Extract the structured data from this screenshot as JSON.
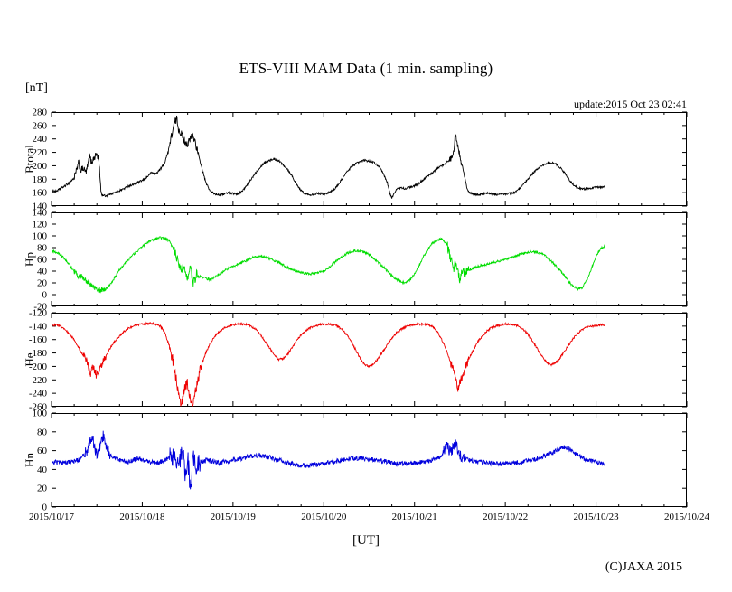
{
  "page": {
    "title": "ETS-VIII MAM Data (1 min. sampling)",
    "unit_label": "[nT]",
    "update_text": "update:2015 Oct 23 02:41",
    "xlabel": "[UT]",
    "copyright": "(C)JAXA 2015",
    "background": "#ffffff"
  },
  "x_axis": {
    "tick_labels": [
      "2015/10/17",
      "2015/10/18",
      "2015/10/19",
      "2015/10/20",
      "2015/10/21",
      "2015/10/22",
      "2015/10/23",
      "2015/10/24"
    ],
    "xlim_days": [
      0,
      7
    ],
    "minor_tick_days": 0.25
  },
  "chart_data": [
    {
      "type": "line",
      "name": "Btotal",
      "color": "#000000",
      "ylim": [
        140,
        280
      ],
      "ytick_step": 20,
      "noise": 1.5,
      "noise_regions": [
        [
          0.25,
          0.55,
          5
        ],
        [
          1.28,
          1.62,
          6
        ],
        [
          4.38,
          4.52,
          5
        ]
      ],
      "x": [
        0,
        0.05,
        0.1,
        0.15,
        0.2,
        0.25,
        0.28,
        0.3,
        0.32,
        0.35,
        0.38,
        0.4,
        0.42,
        0.44,
        0.46,
        0.5,
        0.52,
        0.55,
        0.6,
        0.65,
        0.7,
        0.75,
        0.8,
        0.85,
        0.9,
        0.95,
        1,
        1.05,
        1.1,
        1.15,
        1.2,
        1.25,
        1.3,
        1.35,
        1.38,
        1.4,
        1.43,
        1.45,
        1.5,
        1.55,
        1.58,
        1.62,
        1.65,
        1.7,
        1.75,
        1.8,
        1.85,
        1.9,
        1.95,
        2,
        2.05,
        2.1,
        2.15,
        2.2,
        2.25,
        2.3,
        2.35,
        2.4,
        2.45,
        2.5,
        2.55,
        2.6,
        2.65,
        2.7,
        2.75,
        2.8,
        2.85,
        2.9,
        2.95,
        3,
        3.05,
        3.1,
        3.15,
        3.2,
        3.25,
        3.3,
        3.35,
        3.4,
        3.45,
        3.5,
        3.55,
        3.6,
        3.65,
        3.7,
        3.73,
        3.75,
        3.78,
        3.8,
        3.85,
        3.9,
        3.95,
        4,
        4.05,
        4.1,
        4.15,
        4.2,
        4.25,
        4.3,
        4.35,
        4.4,
        4.43,
        4.45,
        4.47,
        4.5,
        4.55,
        4.58,
        4.6,
        4.65,
        4.7,
        4.75,
        4.8,
        4.85,
        4.9,
        4.95,
        5,
        5.05,
        5.1,
        5.15,
        5.2,
        5.25,
        5.3,
        5.35,
        5.4,
        5.45,
        5.5,
        5.55,
        5.6,
        5.65,
        5.7,
        5.75,
        5.8,
        5.85,
        5.9,
        5.95,
        6,
        6.05,
        6.1
      ],
      "values": [
        163,
        162,
        166,
        170,
        175,
        182,
        195,
        205,
        193,
        196,
        190,
        200,
        215,
        205,
        210,
        218,
        208,
        157,
        155,
        158,
        160,
        163,
        166,
        170,
        172,
        175,
        178,
        183,
        190,
        188,
        195,
        205,
        230,
        262,
        270,
        255,
        248,
        240,
        232,
        245,
        238,
        215,
        200,
        175,
        162,
        158,
        157,
        158,
        160,
        159,
        158,
        162,
        170,
        180,
        190,
        198,
        205,
        208,
        210,
        208,
        202,
        195,
        185,
        172,
        163,
        158,
        157,
        158,
        159,
        158,
        160,
        163,
        170,
        180,
        190,
        198,
        203,
        206,
        208,
        207,
        205,
        200,
        190,
        175,
        158,
        152,
        160,
        165,
        167,
        166,
        168,
        170,
        174,
        180,
        185,
        190,
        196,
        200,
        205,
        210,
        220,
        250,
        235,
        215,
        185,
        165,
        160,
        158,
        157,
        158,
        159,
        158,
        157,
        158,
        158,
        159,
        160,
        165,
        172,
        180,
        188,
        195,
        200,
        203,
        205,
        203,
        198,
        190,
        180,
        172,
        167,
        165,
        166,
        167,
        168,
        168,
        170
      ]
    },
    {
      "type": "line",
      "name": "Hp",
      "color": "#00dd00",
      "ylim": [
        -20,
        140
      ],
      "ytick_step": 20,
      "noise": 2,
      "noise_regions": [
        [
          0.25,
          0.6,
          5
        ],
        [
          1.35,
          1.65,
          8
        ],
        [
          4.36,
          4.6,
          8
        ]
      ],
      "x": [
        0,
        0.05,
        0.1,
        0.15,
        0.2,
        0.25,
        0.28,
        0.3,
        0.33,
        0.36,
        0.4,
        0.45,
        0.5,
        0.55,
        0.6,
        0.65,
        0.7,
        0.75,
        0.8,
        0.85,
        0.9,
        0.95,
        1,
        1.05,
        1.1,
        1.15,
        1.2,
        1.25,
        1.3,
        1.35,
        1.4,
        1.43,
        1.46,
        1.5,
        1.53,
        1.56,
        1.6,
        1.65,
        1.7,
        1.75,
        1.8,
        1.85,
        1.9,
        1.95,
        2,
        2.05,
        2.1,
        2.15,
        2.2,
        2.25,
        2.3,
        2.35,
        2.4,
        2.45,
        2.5,
        2.55,
        2.6,
        2.65,
        2.7,
        2.75,
        2.8,
        2.85,
        2.9,
        2.95,
        3,
        3.05,
        3.1,
        3.15,
        3.2,
        3.25,
        3.3,
        3.35,
        3.4,
        3.45,
        3.5,
        3.55,
        3.6,
        3.65,
        3.7,
        3.75,
        3.8,
        3.85,
        3.9,
        3.95,
        4,
        4.05,
        4.1,
        4.15,
        4.2,
        4.25,
        4.3,
        4.33,
        4.36,
        4.4,
        4.43,
        4.46,
        4.5,
        4.53,
        4.56,
        4.6,
        4.65,
        4.7,
        4.75,
        4.8,
        4.85,
        4.9,
        4.95,
        5,
        5.05,
        5.1,
        5.15,
        5.2,
        5.25,
        5.3,
        5.35,
        5.4,
        5.45,
        5.5,
        5.55,
        5.6,
        5.65,
        5.7,
        5.75,
        5.8,
        5.85,
        5.9,
        5.95,
        6,
        6.05,
        6.1
      ],
      "values": [
        75,
        72,
        68,
        60,
        50,
        40,
        35,
        28,
        32,
        25,
        22,
        15,
        8,
        8,
        10,
        18,
        30,
        42,
        52,
        60,
        68,
        75,
        82,
        88,
        92,
        95,
        97,
        95,
        92,
        75,
        55,
        40,
        50,
        30,
        45,
        20,
        35,
        30,
        28,
        25,
        30,
        35,
        40,
        45,
        48,
        52,
        55,
        58,
        62,
        64,
        65,
        64,
        62,
        58,
        55,
        50,
        46,
        42,
        40,
        38,
        36,
        35,
        36,
        38,
        40,
        45,
        52,
        58,
        64,
        70,
        73,
        75,
        74,
        72,
        68,
        62,
        55,
        48,
        40,
        32,
        26,
        22,
        20,
        25,
        35,
        50,
        65,
        78,
        88,
        93,
        95,
        90,
        85,
        60,
        45,
        55,
        25,
        40,
        35,
        42,
        45,
        48,
        50,
        52,
        54,
        56,
        58,
        60,
        62,
        65,
        68,
        70,
        72,
        73,
        72,
        70,
        65,
        58,
        50,
        42,
        32,
        22,
        14,
        10,
        12,
        25,
        45,
        65,
        78,
        82
      ]
    },
    {
      "type": "line",
      "name": "He",
      "color": "#ee0000",
      "ylim": [
        -260,
        -120
      ],
      "ytick_step": 20,
      "noise": 1.5,
      "noise_regions": [
        [
          0.35,
          0.6,
          6
        ],
        [
          1.3,
          1.65,
          8
        ],
        [
          4.4,
          4.6,
          7
        ]
      ],
      "x": [
        0,
        0.05,
        0.1,
        0.15,
        0.2,
        0.25,
        0.3,
        0.35,
        0.4,
        0.43,
        0.46,
        0.5,
        0.53,
        0.56,
        0.6,
        0.65,
        0.7,
        0.75,
        0.8,
        0.85,
        0.9,
        0.95,
        1,
        1.05,
        1.1,
        1.15,
        1.2,
        1.25,
        1.3,
        1.35,
        1.4,
        1.43,
        1.46,
        1.5,
        1.53,
        1.56,
        1.6,
        1.63,
        1.66,
        1.7,
        1.75,
        1.8,
        1.85,
        1.9,
        1.95,
        2,
        2.05,
        2.1,
        2.15,
        2.2,
        2.25,
        2.3,
        2.35,
        2.4,
        2.45,
        2.5,
        2.55,
        2.6,
        2.65,
        2.7,
        2.75,
        2.8,
        2.85,
        2.9,
        2.95,
        3,
        3.05,
        3.1,
        3.15,
        3.2,
        3.25,
        3.3,
        3.35,
        3.4,
        3.45,
        3.5,
        3.55,
        3.6,
        3.65,
        3.7,
        3.75,
        3.8,
        3.85,
        3.9,
        3.95,
        4,
        4.05,
        4.1,
        4.15,
        4.2,
        4.25,
        4.3,
        4.35,
        4.4,
        4.45,
        4.48,
        4.5,
        4.53,
        4.56,
        4.6,
        4.65,
        4.7,
        4.75,
        4.8,
        4.85,
        4.9,
        4.95,
        5,
        5.05,
        5.1,
        5.15,
        5.2,
        5.25,
        5.3,
        5.35,
        5.4,
        5.45,
        5.5,
        5.55,
        5.6,
        5.65,
        5.7,
        5.75,
        5.8,
        5.85,
        5.9,
        5.95,
        6,
        6.05,
        6.1
      ],
      "values": [
        -140,
        -138,
        -140,
        -145,
        -152,
        -160,
        -172,
        -185,
        -195,
        -210,
        -200,
        -215,
        -205,
        -195,
        -185,
        -172,
        -162,
        -155,
        -148,
        -143,
        -140,
        -138,
        -137,
        -136,
        -136,
        -137,
        -140,
        -150,
        -170,
        -200,
        -240,
        -258,
        -235,
        -225,
        -248,
        -255,
        -230,
        -210,
        -195,
        -180,
        -165,
        -155,
        -148,
        -143,
        -140,
        -138,
        -137,
        -137,
        -138,
        -140,
        -145,
        -152,
        -162,
        -172,
        -182,
        -190,
        -188,
        -182,
        -172,
        -162,
        -153,
        -147,
        -142,
        -140,
        -138,
        -137,
        -137,
        -138,
        -140,
        -145,
        -152,
        -162,
        -175,
        -188,
        -197,
        -200,
        -196,
        -188,
        -178,
        -168,
        -158,
        -150,
        -145,
        -141,
        -139,
        -138,
        -137,
        -137,
        -138,
        -140,
        -148,
        -160,
        -175,
        -195,
        -215,
        -235,
        -225,
        -215,
        -200,
        -188,
        -175,
        -163,
        -154,
        -147,
        -142,
        -140,
        -138,
        -137,
        -137,
        -138,
        -140,
        -145,
        -152,
        -162,
        -173,
        -184,
        -193,
        -198,
        -195,
        -188,
        -178,
        -168,
        -158,
        -150,
        -145,
        -142,
        -140,
        -139,
        -138,
        -138
      ]
    },
    {
      "type": "line",
      "name": "Hn",
      "color": "#0000dd",
      "ylim": [
        0,
        100
      ],
      "ytick_step": 20,
      "noise": 2.5,
      "noise_regions": [
        [
          0.35,
          0.65,
          6
        ],
        [
          1.3,
          1.65,
          11
        ],
        [
          4.3,
          4.55,
          6
        ]
      ],
      "x": [
        0,
        0.1,
        0.2,
        0.3,
        0.35,
        0.4,
        0.45,
        0.48,
        0.5,
        0.55,
        0.58,
        0.6,
        0.65,
        0.7,
        0.75,
        0.8,
        0.85,
        0.9,
        0.95,
        1,
        1.05,
        1.1,
        1.15,
        1.2,
        1.25,
        1.3,
        1.35,
        1.4,
        1.45,
        1.48,
        1.5,
        1.53,
        1.56,
        1.6,
        1.65,
        1.7,
        1.75,
        1.8,
        1.85,
        1.9,
        1.95,
        2,
        2.1,
        2.2,
        2.3,
        2.4,
        2.5,
        2.6,
        2.7,
        2.8,
        2.9,
        3,
        3.1,
        3.2,
        3.3,
        3.4,
        3.5,
        3.6,
        3.7,
        3.8,
        3.9,
        4,
        4.1,
        4.2,
        4.3,
        4.35,
        4.4,
        4.45,
        4.5,
        4.55,
        4.6,
        4.7,
        4.8,
        4.9,
        5,
        5.1,
        5.2,
        5.3,
        5.4,
        5.5,
        5.6,
        5.65,
        5.7,
        5.8,
        5.9,
        6,
        6.05,
        6.1
      ],
      "values": [
        48,
        47,
        48,
        50,
        55,
        62,
        75,
        60,
        55,
        70,
        78,
        65,
        55,
        52,
        50,
        49,
        48,
        50,
        52,
        50,
        49,
        48,
        47,
        48,
        50,
        52,
        55,
        45,
        60,
        30,
        55,
        20,
        50,
        45,
        48,
        50,
        49,
        48,
        47,
        48,
        49,
        50,
        52,
        54,
        55,
        53,
        50,
        47,
        45,
        44,
        45,
        46,
        48,
        50,
        52,
        52,
        51,
        50,
        48,
        46,
        46,
        47,
        48,
        50,
        55,
        65,
        58,
        68,
        55,
        52,
        50,
        48,
        47,
        46,
        46,
        47,
        48,
        50,
        53,
        57,
        62,
        64,
        62,
        55,
        50,
        48,
        47,
        46
      ]
    }
  ]
}
